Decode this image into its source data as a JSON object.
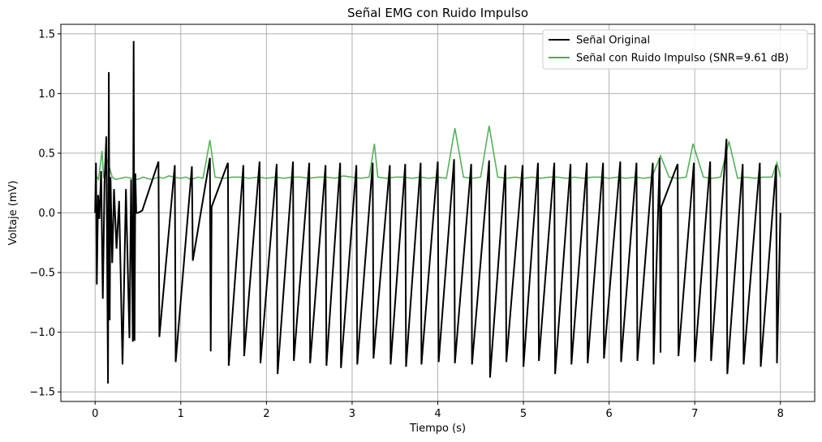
{
  "chart_data": {
    "type": "line",
    "title": "Señal EMG con Ruido Impulso",
    "xlabel": "Tiempo (s)",
    "ylabel": "Voltaje (mV)",
    "xlim": [
      -0.4,
      8.4
    ],
    "ylim": [
      -1.58,
      1.58
    ],
    "x_ticks": [
      0,
      1,
      2,
      3,
      4,
      5,
      6,
      7,
      8
    ],
    "x_tick_labels": [
      "0",
      "1",
      "2",
      "3",
      "4",
      "5",
      "6",
      "7",
      "8"
    ],
    "y_ticks": [
      -1.5,
      -1.0,
      -0.5,
      0.0,
      0.5,
      1.0,
      1.5
    ],
    "y_tick_labels": [
      "−1.5",
      "−1.0",
      "−0.5",
      "0.0",
      "0.5",
      "1.0",
      "1.5"
    ],
    "grid": true,
    "legend_position": "top-right",
    "series": [
      {
        "name": "Señal Original",
        "color": "#000000",
        "x": [
          0.0,
          0.01,
          0.02,
          0.035,
          0.05,
          0.07,
          0.09,
          0.11,
          0.13,
          0.15,
          0.16,
          0.17,
          0.18,
          0.2,
          0.22,
          0.25,
          0.28,
          0.32,
          0.36,
          0.4,
          0.42,
          0.44,
          0.45,
          0.46,
          0.47,
          0.48,
          0.5,
          0.55,
          0.74,
          0.75,
          0.93,
          0.94,
          1.13,
          1.14,
          1.34,
          1.35,
          1.36,
          1.55,
          1.56,
          1.73,
          1.74,
          1.92,
          1.93,
          2.12,
          2.13,
          2.31,
          2.32,
          2.5,
          2.51,
          2.69,
          2.7,
          2.86,
          2.87,
          3.05,
          3.06,
          3.24,
          3.25,
          3.44,
          3.45,
          3.62,
          3.63,
          3.8,
          3.81,
          4.0,
          4.01,
          4.19,
          4.2,
          4.39,
          4.4,
          4.6,
          4.61,
          4.79,
          4.8,
          4.99,
          5.0,
          5.17,
          5.18,
          5.36,
          5.37,
          5.55,
          5.56,
          5.74,
          5.75,
          5.93,
          5.94,
          6.13,
          6.14,
          6.32,
          6.33,
          6.51,
          6.52,
          6.59,
          6.6,
          6.61,
          6.8,
          6.81,
          6.99,
          7.0,
          7.18,
          7.19,
          7.37,
          7.38,
          7.56,
          7.57,
          7.76,
          7.77,
          7.95,
          7.96,
          8.0
        ],
        "y": [
          0.0,
          0.42,
          -0.6,
          0.15,
          -0.05,
          0.35,
          -0.72,
          0.25,
          0.64,
          -1.43,
          1.18,
          -0.9,
          0.3,
          -0.42,
          0.2,
          -0.3,
          0.1,
          -1.27,
          0.2,
          -1.05,
          0.28,
          -1.08,
          1.44,
          -1.07,
          0.33,
          0.0,
          0.0,
          0.02,
          0.43,
          -1.04,
          0.4,
          -1.25,
          0.39,
          -0.4,
          0.46,
          -1.16,
          0.05,
          0.42,
          -1.28,
          0.4,
          -1.2,
          0.43,
          -1.26,
          0.41,
          -1.35,
          0.43,
          -1.24,
          0.42,
          -1.26,
          0.4,
          -1.28,
          0.42,
          -1.3,
          0.4,
          -1.27,
          0.42,
          -1.22,
          0.4,
          -1.27,
          0.41,
          -1.29,
          0.42,
          -1.27,
          0.43,
          -1.25,
          0.45,
          -1.26,
          0.41,
          -1.27,
          0.44,
          -1.38,
          0.4,
          -1.25,
          0.4,
          -1.29,
          0.42,
          -1.24,
          0.42,
          -1.35,
          0.41,
          -1.27,
          0.42,
          -1.26,
          0.42,
          -1.22,
          0.43,
          -1.25,
          0.42,
          -1.24,
          0.42,
          -1.27,
          0.46,
          -1.17,
          0.05,
          0.41,
          -1.2,
          0.42,
          -1.25,
          0.43,
          -1.24,
          0.62,
          -1.35,
          0.41,
          -1.27,
          0.42,
          -1.29,
          0.4,
          -1.26,
          0.0
        ]
      },
      {
        "name": "Señal con Ruido Impulso (SNR=9.61 dB)",
        "color": "#4caf50",
        "x": [
          0.0,
          0.02,
          0.04,
          0.08,
          0.1,
          0.14,
          0.2,
          0.24,
          0.3,
          0.36,
          0.42,
          0.5,
          0.56,
          0.6,
          0.66,
          0.74,
          0.8,
          0.86,
          0.92,
          1.0,
          1.06,
          1.12,
          1.2,
          1.26,
          1.34,
          1.4,
          1.5,
          1.6,
          1.7,
          1.8,
          1.9,
          2.0,
          2.1,
          2.2,
          2.3,
          2.4,
          2.5,
          2.6,
          2.7,
          2.8,
          2.9,
          3.0,
          3.1,
          3.2,
          3.26,
          3.3,
          3.4,
          3.5,
          3.6,
          3.7,
          3.8,
          3.9,
          4.0,
          4.1,
          4.2,
          4.3,
          4.4,
          4.5,
          4.6,
          4.7,
          4.8,
          4.9,
          5.0,
          5.1,
          5.2,
          5.3,
          5.4,
          5.5,
          5.6,
          5.7,
          5.8,
          5.9,
          6.0,
          6.1,
          6.2,
          6.3,
          6.4,
          6.5,
          6.6,
          6.7,
          6.8,
          6.9,
          6.98,
          7.1,
          7.2,
          7.3,
          7.4,
          7.5,
          7.6,
          7.7,
          7.8,
          7.9,
          7.96,
          8.0
        ],
        "y": [
          0.35,
          0.3,
          0.28,
          0.52,
          0.29,
          0.45,
          0.3,
          0.28,
          0.29,
          0.3,
          0.29,
          0.28,
          0.3,
          0.29,
          0.28,
          0.3,
          0.29,
          0.31,
          0.3,
          0.29,
          0.3,
          0.28,
          0.3,
          0.29,
          0.61,
          0.3,
          0.29,
          0.3,
          0.3,
          0.29,
          0.3,
          0.29,
          0.3,
          0.29,
          0.3,
          0.3,
          0.29,
          0.3,
          0.3,
          0.29,
          0.31,
          0.3,
          0.29,
          0.3,
          0.58,
          0.3,
          0.29,
          0.3,
          0.3,
          0.29,
          0.3,
          0.29,
          0.3,
          0.29,
          0.71,
          0.3,
          0.29,
          0.3,
          0.73,
          0.3,
          0.29,
          0.3,
          0.29,
          0.3,
          0.29,
          0.3,
          0.3,
          0.29,
          0.3,
          0.29,
          0.3,
          0.3,
          0.29,
          0.3,
          0.29,
          0.3,
          0.29,
          0.3,
          0.48,
          0.3,
          0.29,
          0.3,
          0.58,
          0.3,
          0.29,
          0.3,
          0.6,
          0.29,
          0.3,
          0.29,
          0.3,
          0.3,
          0.42,
          0.3
        ]
      }
    ]
  }
}
